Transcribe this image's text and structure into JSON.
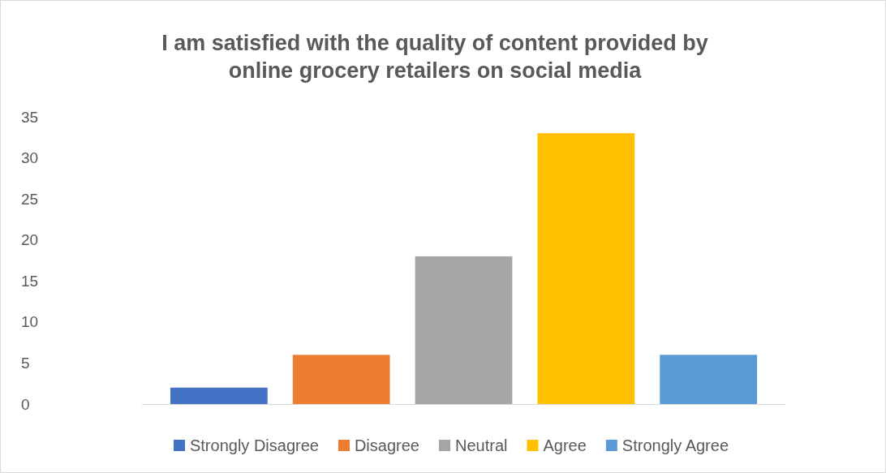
{
  "chart_data": {
    "type": "bar",
    "title": "I am satisfied with the quality of content provided by online grocery retailers on social media",
    "categories": [
      null
    ],
    "series": [
      {
        "name": "Strongly Disagree",
        "color": "#4472c4",
        "values": [
          2
        ]
      },
      {
        "name": "Disagree",
        "color": "#ed7d31",
        "values": [
          6
        ]
      },
      {
        "name": "Neutral",
        "color": "#a5a5a5",
        "values": [
          18
        ]
      },
      {
        "name": "Agree",
        "color": "#ffc000",
        "values": [
          33
        ]
      },
      {
        "name": "Strongly Agree",
        "color": "#5b9bd5",
        "values": [
          6
        ]
      }
    ],
    "ylim": [
      0,
      35
    ],
    "yticks": [
      0,
      5,
      10,
      15,
      20,
      25,
      30,
      35
    ],
    "grid": false,
    "legend": "bottom"
  }
}
